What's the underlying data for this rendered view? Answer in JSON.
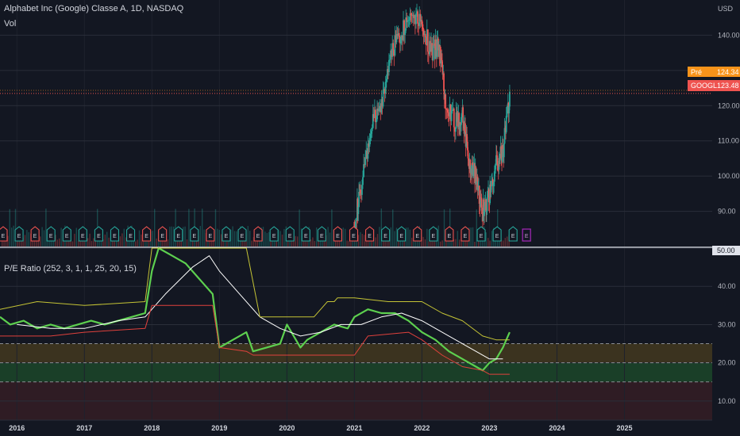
{
  "price_pane": {
    "title": "Alphabet Inc (Google) Classe A, 1D, NASDAQ",
    "sub": "Vol",
    "currency": "USD",
    "pre_label": "Pré",
    "pre_value": "124.34",
    "pre_color": "#f7931a",
    "last_label": "GOOGL",
    "last_value": "123.48",
    "last_color": "#ef5350",
    "up_color": "#26a69a",
    "down_color": "#ef5350"
  },
  "pe_pane": {
    "title": "P/E Ratio (252, 3, 1, 1, 25, 20, 15)",
    "top_label": "50.00"
  },
  "earnings_marker": "E",
  "chart_data": [
    {
      "type": "candlestick",
      "title": "Alphabet Inc (Google) Classe A, 1D, NASDAQ",
      "ylabel": "USD",
      "ylim": [
        80,
        150
      ],
      "yticks": [
        90,
        100,
        110,
        120,
        130,
        140
      ],
      "x_range": [
        2021.0,
        2023.3
      ],
      "price_path": [
        [
          2021.0,
          87
        ],
        [
          2021.1,
          96
        ],
        [
          2021.25,
          114
        ],
        [
          2021.4,
          120
        ],
        [
          2021.55,
          136
        ],
        [
          2021.7,
          141
        ],
        [
          2021.85,
          147
        ],
        [
          2022.0,
          144
        ],
        [
          2022.15,
          134
        ],
        [
          2022.25,
          138
        ],
        [
          2022.35,
          122
        ],
        [
          2022.5,
          115
        ],
        [
          2022.6,
          118
        ],
        [
          2022.7,
          104
        ],
        [
          2022.8,
          100
        ],
        [
          2022.9,
          90
        ],
        [
          2023.0,
          95
        ],
        [
          2023.1,
          103
        ],
        [
          2023.2,
          107
        ],
        [
          2023.3,
          123
        ]
      ],
      "current_price": 123.48,
      "premarket_price": 124.34
    },
    {
      "type": "line",
      "title": "P/E Ratio (252, 3, 1, 1, 25, 20, 15)",
      "ylim": [
        5,
        50
      ],
      "yticks": [
        10,
        20,
        30,
        40,
        50
      ],
      "xticks": [
        "2016",
        "2017",
        "2018",
        "2019",
        "2020",
        "2021",
        "2022",
        "2023",
        "2024",
        "2025"
      ],
      "x_range": [
        2015.75,
        2026.3
      ],
      "bands": [
        {
          "from": 20,
          "to": 25,
          "color": "#4a3d1f"
        },
        {
          "from": 15,
          "to": 20,
          "color": "#1e4d2b"
        },
        {
          "from": 5,
          "to": 15,
          "color": "#3a1f26"
        }
      ],
      "levels": [
        25,
        20,
        15
      ],
      "series": [
        {
          "color": "#5dd04f",
          "points": [
            [
              2015.75,
              32
            ],
            [
              2015.9,
              30
            ],
            [
              2016.1,
              31
            ],
            [
              2016.3,
              29
            ],
            [
              2016.5,
              30
            ],
            [
              2016.7,
              29
            ],
            [
              2016.9,
              30
            ],
            [
              2017.1,
              31
            ],
            [
              2017.3,
              30
            ],
            [
              2017.5,
              31
            ],
            [
              2017.7,
              32
            ],
            [
              2017.9,
              33
            ],
            [
              2018.0,
              44
            ],
            [
              2018.1,
              52
            ],
            [
              2018.3,
              48
            ],
            [
              2018.5,
              46
            ],
            [
              2018.7,
              42
            ],
            [
              2018.9,
              38
            ],
            [
              2019.0,
              24
            ],
            [
              2019.2,
              26
            ],
            [
              2019.4,
              28
            ],
            [
              2019.5,
              23
            ],
            [
              2019.7,
              24
            ],
            [
              2019.9,
              25
            ],
            [
              2020.0,
              30
            ],
            [
              2020.2,
              24
            ],
            [
              2020.3,
              26
            ],
            [
              2020.5,
              28
            ],
            [
              2020.7,
              30
            ],
            [
              2020.9,
              29
            ],
            [
              2021.0,
              32
            ],
            [
              2021.2,
              34
            ],
            [
              2021.4,
              33
            ],
            [
              2021.6,
              33
            ],
            [
              2021.8,
              31
            ],
            [
              2022.0,
              28
            ],
            [
              2022.2,
              26
            ],
            [
              2022.4,
              23
            ],
            [
              2022.6,
              21
            ],
            [
              2022.8,
              19
            ],
            [
              2022.9,
              18
            ],
            [
              2023.0,
              20
            ],
            [
              2023.1,
              21
            ],
            [
              2023.2,
              24
            ],
            [
              2023.3,
              28
            ]
          ]
        },
        {
          "color": "#ffffff",
          "points": [
            [
              2016.0,
              30
            ],
            [
              2016.5,
              29
            ],
            [
              2017.0,
              29
            ],
            [
              2017.5,
              31
            ],
            [
              2017.9,
              32
            ],
            [
              2018.2,
              38
            ],
            [
              2018.6,
              45
            ],
            [
              2018.85,
              48
            ],
            [
              2019.0,
              44
            ],
            [
              2019.3,
              38
            ],
            [
              2019.6,
              32
            ],
            [
              2019.9,
              29
            ],
            [
              2020.2,
              27
            ],
            [
              2020.5,
              28
            ],
            [
              2020.8,
              30
            ],
            [
              2021.1,
              30
            ],
            [
              2021.4,
              32
            ],
            [
              2021.7,
              33
            ],
            [
              2022.0,
              31
            ],
            [
              2022.4,
              27
            ],
            [
              2022.8,
              23
            ],
            [
              2023.0,
              21
            ],
            [
              2023.2,
              21
            ]
          ]
        },
        {
          "color": "#c5c435",
          "points": [
            [
              2015.75,
              34
            ],
            [
              2016.3,
              36
            ],
            [
              2017.0,
              35
            ],
            [
              2017.9,
              36
            ],
            [
              2018.0,
              52
            ],
            [
              2018.8,
              52
            ],
            [
              2019.0,
              52
            ],
            [
              2019.25,
              52
            ],
            [
              2019.4,
              52
            ],
            [
              2019.6,
              32
            ],
            [
              2020.0,
              32
            ],
            [
              2020.4,
              32
            ],
            [
              2020.6,
              36
            ],
            [
              2020.7,
              36
            ],
            [
              2020.75,
              37
            ],
            [
              2021.0,
              37
            ],
            [
              2021.5,
              36
            ],
            [
              2022.0,
              36
            ],
            [
              2022.3,
              33
            ],
            [
              2022.6,
              31
            ],
            [
              2022.9,
              27
            ],
            [
              2023.1,
              26
            ],
            [
              2023.3,
              26
            ]
          ]
        },
        {
          "color": "#e0413c",
          "points": [
            [
              2015.75,
              27
            ],
            [
              2016.5,
              27
            ],
            [
              2017.0,
              28
            ],
            [
              2017.9,
              29
            ],
            [
              2018.0,
              35
            ],
            [
              2018.9,
              35
            ],
            [
              2019.0,
              24
            ],
            [
              2019.4,
              23
            ],
            [
              2019.5,
              22
            ],
            [
              2020.3,
              22
            ],
            [
              2021.0,
              22
            ],
            [
              2021.2,
              27
            ],
            [
              2021.8,
              28
            ],
            [
              2022.0,
              26
            ],
            [
              2022.3,
              22
            ],
            [
              2022.6,
              19
            ],
            [
              2022.9,
              18
            ],
            [
              2023.0,
              17
            ],
            [
              2023.3,
              17
            ]
          ]
        }
      ]
    }
  ]
}
